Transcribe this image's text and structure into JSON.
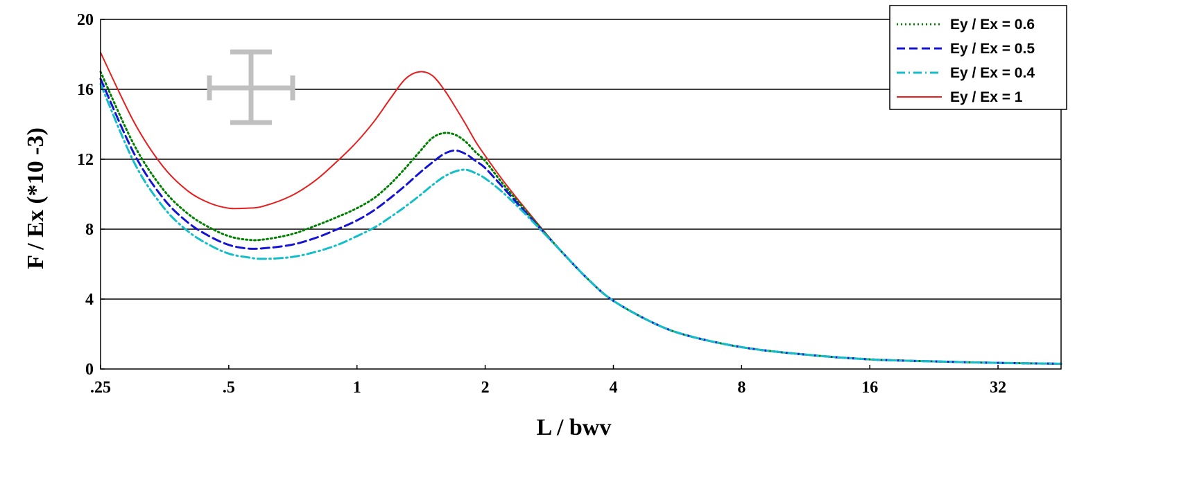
{
  "chart_data": {
    "type": "line",
    "title": "",
    "xlabel": "L / bwv",
    "ylabel": "F / Ex (*10 -3)",
    "x_scale": "log2",
    "xlim": [
      0.25,
      45
    ],
    "ylim": [
      0,
      20
    ],
    "x_ticks": [
      0.25,
      0.5,
      1,
      2,
      4,
      8,
      16,
      32
    ],
    "x_tick_labels": [
      ".25",
      ".5",
      "1",
      "2",
      "4",
      "8",
      "16",
      "32"
    ],
    "y_ticks": [
      0,
      4,
      8,
      12,
      16,
      20
    ],
    "y_tick_labels": [
      "0",
      "4",
      "8",
      "12",
      "16",
      "20"
    ],
    "grid": "horizontal",
    "legend_position": "top-right",
    "series": [
      {
        "name": "Ey / Ex = 0.6",
        "color": "#008000",
        "dash": "dotted",
        "x": [
          0.25,
          0.3,
          0.35,
          0.4,
          0.45,
          0.5,
          0.55,
          0.6,
          0.7,
          0.8,
          0.9,
          1.0,
          1.1,
          1.2,
          1.3,
          1.4,
          1.5,
          1.6,
          1.7,
          1.8,
          1.9,
          2.0,
          2.2,
          2.5,
          3.0,
          3.5,
          4.0,
          5.0,
          6.0,
          8.0,
          11.0,
          16.0,
          24.0,
          32.0,
          45.0
        ],
        "y": [
          17.0,
          12.8,
          10.3,
          8.9,
          8.1,
          7.6,
          7.4,
          7.4,
          7.7,
          8.2,
          8.7,
          9.2,
          9.8,
          10.6,
          11.5,
          12.4,
          13.2,
          13.5,
          13.4,
          13.0,
          12.4,
          11.9,
          10.6,
          9.0,
          6.8,
          5.1,
          3.9,
          2.6,
          1.9,
          1.25,
          0.85,
          0.55,
          0.42,
          0.35,
          0.3
        ]
      },
      {
        "name": "Ey / Ex = 0.5",
        "color": "#1414d2",
        "dash": "dashed",
        "x": [
          0.25,
          0.3,
          0.35,
          0.4,
          0.45,
          0.5,
          0.55,
          0.6,
          0.7,
          0.8,
          0.9,
          1.0,
          1.1,
          1.2,
          1.3,
          1.4,
          1.5,
          1.6,
          1.7,
          1.8,
          1.9,
          2.0,
          2.2,
          2.5,
          3.0,
          3.5,
          4.0,
          5.0,
          6.0,
          8.0,
          11.0,
          16.0,
          24.0,
          32.0,
          45.0
        ],
        "y": [
          16.6,
          12.3,
          9.8,
          8.4,
          7.6,
          7.1,
          6.9,
          6.9,
          7.1,
          7.5,
          8.0,
          8.5,
          9.1,
          9.8,
          10.5,
          11.2,
          11.8,
          12.3,
          12.5,
          12.3,
          11.9,
          11.5,
          10.4,
          8.9,
          6.8,
          5.1,
          3.9,
          2.6,
          1.9,
          1.25,
          0.85,
          0.55,
          0.42,
          0.35,
          0.3
        ]
      },
      {
        "name": "Ey / Ex = 0.4",
        "color": "#14bec8",
        "dash": "dashdot",
        "x": [
          0.25,
          0.3,
          0.35,
          0.4,
          0.45,
          0.5,
          0.55,
          0.6,
          0.7,
          0.8,
          0.9,
          1.0,
          1.1,
          1.2,
          1.3,
          1.4,
          1.5,
          1.6,
          1.7,
          1.8,
          1.9,
          2.0,
          2.2,
          2.5,
          3.0,
          3.5,
          4.0,
          5.0,
          6.0,
          8.0,
          11.0,
          16.0,
          24.0,
          32.0,
          45.0
        ],
        "y": [
          16.3,
          11.8,
          9.3,
          7.9,
          7.1,
          6.6,
          6.4,
          6.3,
          6.4,
          6.7,
          7.1,
          7.6,
          8.1,
          8.7,
          9.3,
          9.9,
          10.5,
          11.0,
          11.3,
          11.4,
          11.2,
          10.9,
          10.1,
          8.8,
          6.8,
          5.1,
          3.9,
          2.6,
          1.9,
          1.25,
          0.85,
          0.55,
          0.42,
          0.35,
          0.3
        ]
      },
      {
        "name": "Ey / Ex = 1",
        "color": "#e61e1e",
        "dash": "solid",
        "x": [
          0.25,
          0.3,
          0.35,
          0.4,
          0.45,
          0.5,
          0.55,
          0.6,
          0.7,
          0.8,
          0.9,
          1.0,
          1.1,
          1.2,
          1.3,
          1.4,
          1.5,
          1.6,
          1.7,
          1.8,
          1.9,
          2.0,
          2.2,
          2.5,
          3.0,
          3.5,
          4.0,
          5.0,
          6.0,
          8.0,
          11.0,
          16.0,
          24.0,
          32.0,
          45.0
        ],
        "y": [
          18.1,
          14.1,
          11.6,
          10.2,
          9.5,
          9.2,
          9.2,
          9.3,
          9.9,
          10.8,
          11.9,
          13.0,
          14.2,
          15.5,
          16.6,
          17.0,
          16.8,
          16.0,
          15.0,
          14.0,
          13.0,
          12.2,
          10.8,
          9.1,
          6.8,
          5.1,
          3.9,
          2.6,
          1.9,
          1.25,
          0.85,
          0.55,
          0.42,
          0.35,
          0.3
        ]
      }
    ]
  }
}
